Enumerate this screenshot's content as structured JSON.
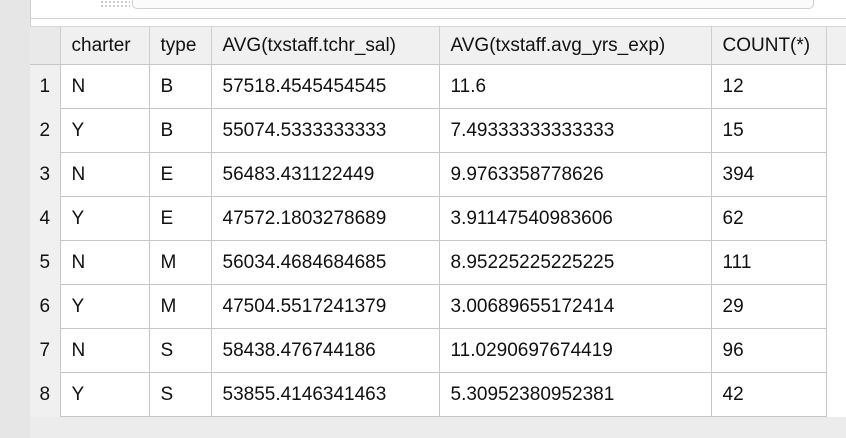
{
  "results_grid": {
    "columns": [
      "charter",
      "type",
      "AVG(txstaff.tchr_sal)",
      "AVG(txstaff.avg_yrs_exp)",
      "COUNT(*)"
    ],
    "rows": [
      {
        "num": "1",
        "cells": [
          "N",
          "B",
          "57518.4545454545",
          "11.6",
          "12"
        ]
      },
      {
        "num": "2",
        "cells": [
          "Y",
          "B",
          "55074.5333333333",
          "7.49333333333333",
          "15"
        ]
      },
      {
        "num": "3",
        "cells": [
          "N",
          "E",
          "56483.431122449",
          "9.9763358778626",
          "394"
        ]
      },
      {
        "num": "4",
        "cells": [
          "Y",
          "E",
          "47572.1803278689",
          "3.91147540983606",
          "62"
        ]
      },
      {
        "num": "5",
        "cells": [
          "N",
          "M",
          "56034.4684684685",
          "8.95225225225225",
          "111"
        ]
      },
      {
        "num": "6",
        "cells": [
          "Y",
          "M",
          "47504.5517241379",
          "3.00689655172414",
          "29"
        ]
      },
      {
        "num": "7",
        "cells": [
          "N",
          "S",
          "58438.476744186",
          "11.0290697674419",
          "96"
        ]
      },
      {
        "num": "8",
        "cells": [
          "Y",
          "S",
          "53855.4146341463",
          "5.30952380952381",
          "42"
        ]
      }
    ]
  }
}
